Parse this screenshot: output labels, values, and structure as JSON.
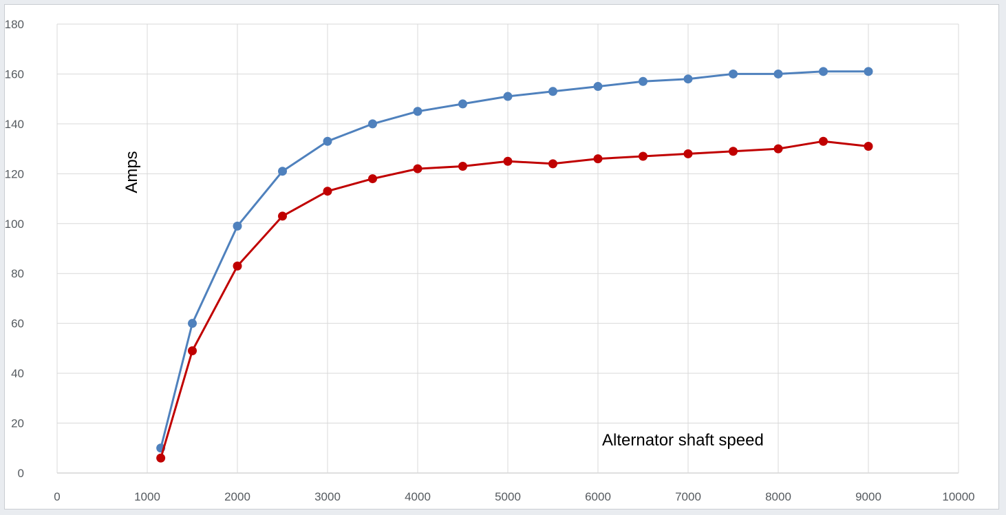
{
  "chart_data": {
    "type": "scatter",
    "title": "",
    "xlabel": "Alternator shaft speed",
    "ylabel": "Amps",
    "xlim": [
      0,
      10000
    ],
    "ylim": [
      0,
      180
    ],
    "xticks": [
      "0",
      "1000",
      "2000",
      "3000",
      "4000",
      "5000",
      "6000",
      "7000",
      "8000",
      "9000",
      "10000"
    ],
    "yticks": [
      "0",
      "20",
      "40",
      "60",
      "80",
      "100",
      "120",
      "140",
      "160",
      "180"
    ],
    "grid": true,
    "legend": "none",
    "markers": true,
    "lines": "straight",
    "series": [
      {
        "color": "#4f81bd",
        "points": [
          [
            1150,
            10
          ],
          [
            1500,
            60
          ],
          [
            2000,
            99
          ],
          [
            2500,
            121
          ],
          [
            3000,
            133
          ],
          [
            3500,
            140
          ],
          [
            4000,
            145
          ],
          [
            4500,
            148
          ],
          [
            5000,
            151
          ],
          [
            5500,
            153
          ],
          [
            6000,
            155
          ],
          [
            6500,
            157
          ],
          [
            7000,
            158
          ],
          [
            7500,
            160
          ],
          [
            8000,
            160
          ],
          [
            8500,
            161
          ],
          [
            9000,
            161
          ]
        ]
      },
      {
        "color": "#c00000",
        "points": [
          [
            1150,
            6
          ],
          [
            1500,
            49
          ],
          [
            2000,
            83
          ],
          [
            2500,
            103
          ],
          [
            3000,
            113
          ],
          [
            3500,
            118
          ],
          [
            4000,
            122
          ],
          [
            4500,
            123
          ],
          [
            5000,
            125
          ],
          [
            5500,
            124
          ],
          [
            6000,
            126
          ],
          [
            6500,
            127
          ],
          [
            7000,
            128
          ],
          [
            7500,
            129
          ],
          [
            8000,
            130
          ],
          [
            8500,
            133
          ],
          [
            9000,
            131
          ]
        ]
      }
    ]
  },
  "colors": {
    "gridline": "#d9d9d9",
    "axis": "#bfbfbf",
    "background": "#ffffff"
  }
}
